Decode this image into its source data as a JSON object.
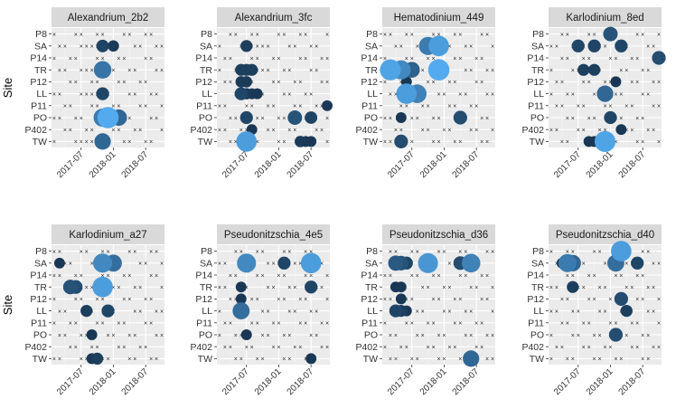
{
  "chart_data": {
    "type": "scatter",
    "layout": "facet-grid-2x4",
    "ylabel": "Site",
    "sites": [
      "P8",
      "SA",
      "P14",
      "TR",
      "P12",
      "LL",
      "P11",
      "PO",
      "P402",
      "TW"
    ],
    "x_ticks": [
      "2017-07",
      "2018-01",
      "2018-07"
    ],
    "x_range": [
      "2017-02",
      "2018-10"
    ],
    "encoding": {
      "absent_marker": "×",
      "size": "relative abundance",
      "color_low": "#132B43",
      "color_high": "#56B1F7"
    },
    "panels": [
      {
        "title": "Alexandrium_2b2",
        "points": [
          {
            "site": "SA",
            "date": "2017-07",
            "v": 0
          },
          {
            "site": "SA",
            "date": "2017-08",
            "v": 0
          },
          {
            "site": "SA",
            "date": "2017-09",
            "v": 0
          },
          {
            "site": "SA",
            "date": "2017-10",
            "v": 0
          },
          {
            "site": "SA",
            "date": "2017-11",
            "v": 0.18
          },
          {
            "site": "SA",
            "date": "2018-01",
            "v": 0.12
          },
          {
            "site": "TR",
            "date": "2017-07",
            "v": 0
          },
          {
            "site": "TR",
            "date": "2017-08",
            "v": 0
          },
          {
            "site": "TR",
            "date": "2017-09",
            "v": 0
          },
          {
            "site": "TR",
            "date": "2017-10",
            "v": 0
          },
          {
            "site": "TR",
            "date": "2017-11",
            "v": 0.55
          },
          {
            "site": "LL",
            "date": "2017-07",
            "v": 0
          },
          {
            "site": "LL",
            "date": "2017-08",
            "v": 0
          },
          {
            "site": "LL",
            "date": "2017-09",
            "v": 0
          },
          {
            "site": "LL",
            "date": "2017-10",
            "v": 0
          },
          {
            "site": "LL",
            "date": "2017-11",
            "v": 0.2
          },
          {
            "site": "PO",
            "date": "2017-11",
            "v": 0.6
          },
          {
            "site": "PO",
            "date": "2017-12",
            "v": 0.95
          },
          {
            "site": "PO",
            "date": "2018-02",
            "v": 0.45
          },
          {
            "site": "TW",
            "date": "2017-07",
            "v": 0
          },
          {
            "site": "TW",
            "date": "2017-08",
            "v": 0
          },
          {
            "site": "TW",
            "date": "2017-09",
            "v": 0
          },
          {
            "site": "TW",
            "date": "2017-10",
            "v": 0
          },
          {
            "site": "TW",
            "date": "2017-11",
            "v": 0.45
          }
        ]
      },
      {
        "title": "Alexandrium_3fc",
        "points": [
          {
            "site": "SA",
            "date": "2017-07",
            "v": 0.15
          },
          {
            "site": "SA",
            "date": "2017-08",
            "v": 0
          },
          {
            "site": "SA",
            "date": "2017-09",
            "v": 0
          },
          {
            "site": "TR",
            "date": "2017-06",
            "v": 0.15
          },
          {
            "site": "TR",
            "date": "2017-07",
            "v": 0.15
          },
          {
            "site": "TR",
            "date": "2017-08",
            "v": 0.15
          },
          {
            "site": "TR",
            "date": "2017-09",
            "v": 0
          },
          {
            "site": "P12",
            "date": "2017-06",
            "v": 0.12
          },
          {
            "site": "P12",
            "date": "2017-07",
            "v": 0.12
          },
          {
            "site": "LL",
            "date": "2017-06",
            "v": 0.2
          },
          {
            "site": "LL",
            "date": "2017-07",
            "v": 0.12
          },
          {
            "site": "LL",
            "date": "2017-08",
            "v": 0.1
          },
          {
            "site": "LL",
            "date": "2017-09",
            "v": 0.1
          },
          {
            "site": "P11",
            "date": "2018-10",
            "v": 0.1
          },
          {
            "site": "PO",
            "date": "2017-07",
            "v": 0.2
          },
          {
            "site": "PO",
            "date": "2018-04",
            "v": 0.3
          },
          {
            "site": "PO",
            "date": "2018-07",
            "v": 0.18
          },
          {
            "site": "P402",
            "date": "2017-08",
            "v": 0.1
          },
          {
            "site": "TW",
            "date": "2017-07",
            "v": 0.85
          },
          {
            "site": "TW",
            "date": "2018-05",
            "v": 0.12
          },
          {
            "site": "TW",
            "date": "2018-06",
            "v": 0.1
          },
          {
            "site": "TW",
            "date": "2018-07",
            "v": 0.1
          }
        ]
      },
      {
        "title": "Hematodinium_449",
        "points": [
          {
            "site": "SA",
            "date": "2017-10",
            "v": 0.6
          },
          {
            "site": "SA",
            "date": "2017-12",
            "v": 0.85
          },
          {
            "site": "TR",
            "date": "2017-03",
            "v": 0.9
          },
          {
            "site": "TR",
            "date": "2017-05",
            "v": 0.7
          },
          {
            "site": "TR",
            "date": "2017-07",
            "v": 0.4
          },
          {
            "site": "TR",
            "date": "2017-12",
            "v": 0.95
          },
          {
            "site": "P12",
            "date": "2017-06",
            "v": 0.1
          },
          {
            "site": "LL",
            "date": "2017-06",
            "v": 0.85
          },
          {
            "site": "LL",
            "date": "2017-08",
            "v": 0.65
          },
          {
            "site": "PO",
            "date": "2017-05",
            "v": 0.1
          },
          {
            "site": "PO",
            "date": "2018-04",
            "v": 0.25
          },
          {
            "site": "TW",
            "date": "2017-05",
            "v": 0.25
          }
        ]
      },
      {
        "title": "Karlodinium_8ed",
        "points": [
          {
            "site": "P8",
            "date": "2018-01",
            "v": 0.3
          },
          {
            "site": "SA",
            "date": "2017-07",
            "v": 0.2
          },
          {
            "site": "SA",
            "date": "2017-08",
            "v": 0
          },
          {
            "site": "SA",
            "date": "2017-10",
            "v": 0.2
          },
          {
            "site": "SA",
            "date": "2018-03",
            "v": 0.2
          },
          {
            "site": "P14",
            "date": "2018-10",
            "v": 0.25
          },
          {
            "site": "TR",
            "date": "2017-08",
            "v": 0.15
          },
          {
            "site": "TR",
            "date": "2017-10",
            "v": 0.15
          },
          {
            "site": "P12",
            "date": "2018-02",
            "v": 0.1
          },
          {
            "site": "LL",
            "date": "2017-12",
            "v": 0.45
          },
          {
            "site": "PO",
            "date": "2018-01",
            "v": 0.2
          },
          {
            "site": "P402",
            "date": "2018-03",
            "v": 0.1
          },
          {
            "site": "TW",
            "date": "2017-09",
            "v": 0.1
          },
          {
            "site": "TW",
            "date": "2017-10",
            "v": 0.1
          },
          {
            "site": "TW",
            "date": "2017-12",
            "v": 0.9
          }
        ]
      },
      {
        "title": "Karlodinium_a27",
        "points": [
          {
            "site": "SA",
            "date": "2017-03",
            "v": 0.1
          },
          {
            "site": "SA",
            "date": "2017-11",
            "v": 0.7
          },
          {
            "site": "SA",
            "date": "2018-01",
            "v": 0.5
          },
          {
            "site": "TR",
            "date": "2017-05",
            "v": 0.3
          },
          {
            "site": "TR",
            "date": "2017-06",
            "v": 0.25
          },
          {
            "site": "TR",
            "date": "2017-11",
            "v": 0.85
          },
          {
            "site": "LL",
            "date": "2017-08",
            "v": 0.15
          },
          {
            "site": "LL",
            "date": "2017-12",
            "v": 0.2
          },
          {
            "site": "PO",
            "date": "2017-09",
            "v": 0.1
          },
          {
            "site": "TW",
            "date": "2017-09",
            "v": 0.1
          },
          {
            "site": "TW",
            "date": "2017-10",
            "v": 0.15
          }
        ]
      },
      {
        "title": "Pseudonitzschia_4e5",
        "points": [
          {
            "site": "SA",
            "date": "2017-07",
            "v": 0.7
          },
          {
            "site": "SA",
            "date": "2018-02",
            "v": 0.2
          },
          {
            "site": "SA",
            "date": "2018-07",
            "v": 0.85
          },
          {
            "site": "TR",
            "date": "2017-06",
            "v": 0.1
          },
          {
            "site": "TR",
            "date": "2018-07",
            "v": 0.2
          },
          {
            "site": "P12",
            "date": "2017-06",
            "v": 0.1
          },
          {
            "site": "LL",
            "date": "2017-06",
            "v": 0.5
          },
          {
            "site": "PO",
            "date": "2017-07",
            "v": 0.1
          },
          {
            "site": "TW",
            "date": "2018-07",
            "v": 0.1
          }
        ]
      },
      {
        "title": "Pseudonitzschia_d36",
        "points": [
          {
            "site": "SA",
            "date": "2017-04",
            "v": 0.35
          },
          {
            "site": "SA",
            "date": "2017-05",
            "v": 0.3
          },
          {
            "site": "SA",
            "date": "2017-06",
            "v": 0.2
          },
          {
            "site": "SA",
            "date": "2017-10",
            "v": 0.8
          },
          {
            "site": "SA",
            "date": "2018-04",
            "v": 0.25
          },
          {
            "site": "SA",
            "date": "2018-06",
            "v": 0.65
          },
          {
            "site": "TR",
            "date": "2017-04",
            "v": 0.1
          },
          {
            "site": "TR",
            "date": "2017-05",
            "v": 0.1
          },
          {
            "site": "P12",
            "date": "2017-05",
            "v": 0.1
          },
          {
            "site": "LL",
            "date": "2017-04",
            "v": 0.2
          },
          {
            "site": "LL",
            "date": "2017-05",
            "v": 0.15
          },
          {
            "site": "LL",
            "date": "2017-06",
            "v": 0.1
          },
          {
            "site": "TW",
            "date": "2018-06",
            "v": 0.45
          }
        ]
      },
      {
        "title": "Pseudonitzschia_d40",
        "points": [
          {
            "site": "P8",
            "date": "2018-03",
            "v": 0.85
          },
          {
            "site": "SA",
            "date": "2017-04",
            "v": 0.1
          },
          {
            "site": "SA",
            "date": "2017-05",
            "v": 0.6
          },
          {
            "site": "SA",
            "date": "2017-06",
            "v": 0.45
          },
          {
            "site": "SA",
            "date": "2018-02",
            "v": 0.5
          },
          {
            "site": "SA",
            "date": "2018-06",
            "v": 0.2
          },
          {
            "site": "TR",
            "date": "2017-06",
            "v": 0.15
          },
          {
            "site": "P12",
            "date": "2018-03",
            "v": 0.25
          },
          {
            "site": "LL",
            "date": "2018-04",
            "v": 0.15
          },
          {
            "site": "PO",
            "date": "2018-02",
            "v": 0.25
          }
        ]
      }
    ]
  }
}
